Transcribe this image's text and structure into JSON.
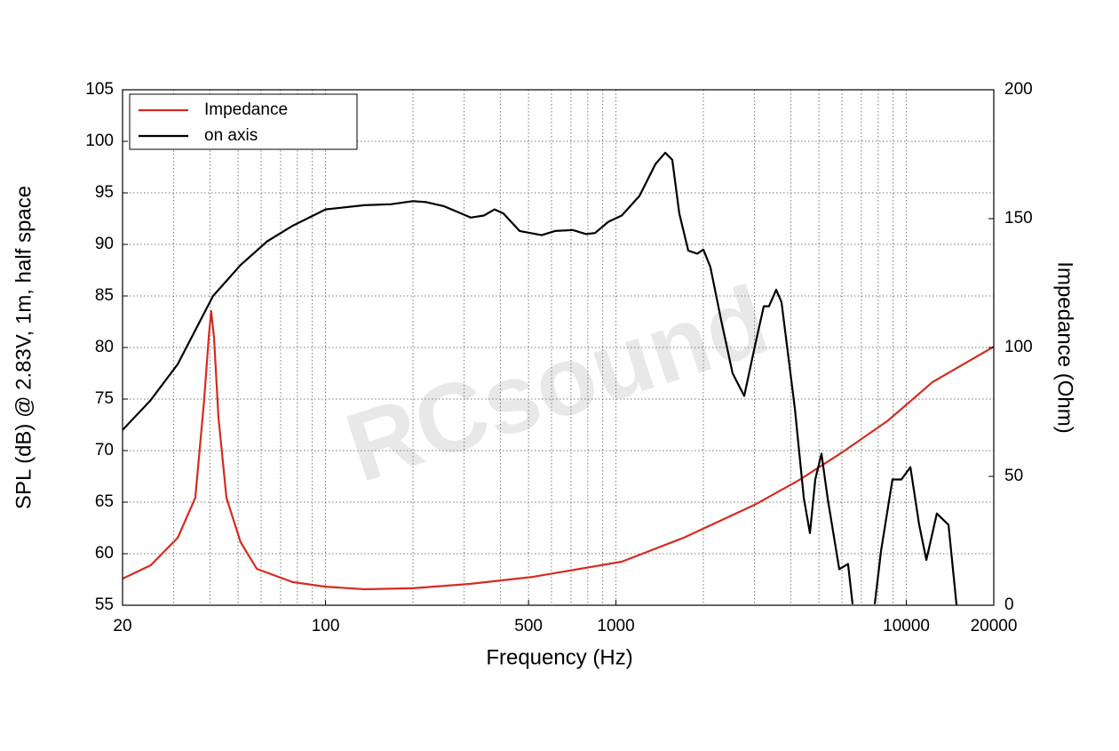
{
  "chart_data": {
    "type": "line",
    "xlabel": "Frequency (Hz)",
    "ylabel": "SPL (dB) @ 2.83V, 1m, half space",
    "y2label": "Impedance (Ohm)",
    "watermark": "RCsound",
    "xscale": "log",
    "xlim": [
      20,
      20000
    ],
    "xticks": [
      20,
      100,
      500,
      1000,
      10000,
      20000
    ],
    "xgrid": [
      20,
      30,
      40,
      50,
      60,
      70,
      80,
      90,
      100,
      200,
      300,
      400,
      500,
      600,
      700,
      800,
      900,
      1000,
      2000,
      3000,
      4000,
      5000,
      6000,
      7000,
      8000,
      9000,
      10000,
      20000
    ],
    "ylim": [
      55,
      105
    ],
    "yticks": [
      55,
      60,
      65,
      70,
      75,
      80,
      85,
      90,
      95,
      100,
      105
    ],
    "y2lim": [
      0,
      200
    ],
    "y2ticks": [
      0,
      50,
      100,
      150,
      200
    ],
    "grid": true,
    "legend": "upper left",
    "series": [
      {
        "name": "Impedance",
        "color": "#d62b1f",
        "axis": "y2",
        "x": [
          20,
          25,
          31,
          35.6,
          38.2,
          39.6,
          40.4,
          41.3,
          42.8,
          45.6,
          51,
          58,
          77,
          100,
          136,
          200,
          316,
          517,
          1047,
          1713,
          3007,
          4278,
          6082,
          8652,
          12300,
          20000
        ],
        "values": [
          10.3,
          15.5,
          26.2,
          41.7,
          79.7,
          103.8,
          114.1,
          103.8,
          72.8,
          41.7,
          24.5,
          14.1,
          9.0,
          7.2,
          6.2,
          6.6,
          8.3,
          11.0,
          16.9,
          26.2,
          39.0,
          48.6,
          59.7,
          71.7,
          86.6,
          100.3
        ]
      },
      {
        "name": "on axis",
        "color": "#000000",
        "x": [
          20,
          25,
          31,
          41,
          51,
          63,
          77,
          100,
          136,
          168,
          200,
          222,
          256,
          316,
          351,
          382,
          410,
          466,
          555,
          617,
          710,
          790,
          847,
          942,
          1047,
          1205,
          1368,
          1479,
          1563,
          1653,
          1774,
          1905,
          2000,
          2115,
          2301,
          2522,
          2766,
          3007,
          3228,
          3366,
          3562,
          3716,
          4130,
          4436,
          4656,
          4858,
          5103,
          5358,
          5873,
          6300,
          6528,
          7000,
          7784,
          8186,
          8955,
          9616,
          10324,
          11068,
          11718,
          12738,
          13387,
          13964,
          14890
        ],
        "values": [
          72.0,
          74.9,
          78.4,
          85.0,
          88.0,
          90.3,
          91.8,
          93.4,
          93.8,
          93.9,
          94.2,
          94.1,
          93.7,
          92.6,
          92.8,
          93.4,
          93.0,
          91.3,
          90.9,
          91.3,
          91.4,
          91.0,
          91.1,
          92.2,
          92.8,
          94.7,
          97.8,
          98.9,
          98.2,
          93.0,
          89.4,
          89.1,
          89.5,
          87.8,
          82.7,
          77.5,
          75.3,
          80.1,
          84.0,
          84.0,
          85.6,
          84.4,
          74.1,
          65.4,
          62.0,
          67.2,
          69.7,
          65.4,
          58.5,
          59.0,
          55.1,
          null,
          55.1,
          60.3,
          67.2,
          67.2,
          68.4,
          62.8,
          59.4,
          63.9,
          63.3,
          62.8,
          55.0
        ]
      }
    ]
  }
}
